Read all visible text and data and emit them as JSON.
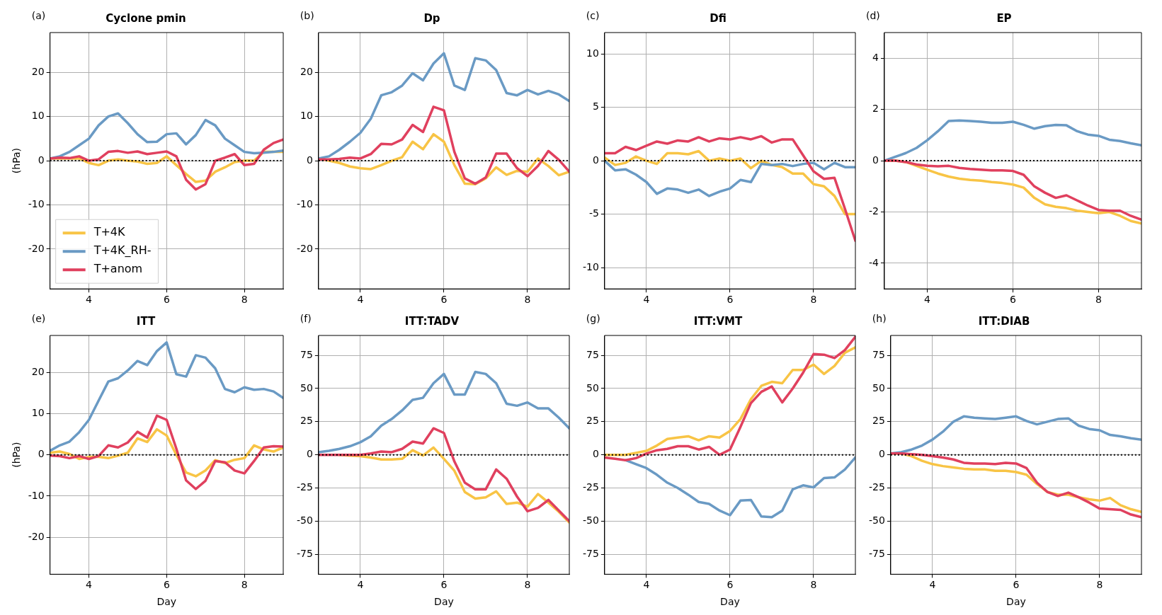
{
  "chart_data": [
    {
      "type": "line",
      "title": "Cyclone pmin",
      "annotations": [
        "(a)"
      ],
      "ylabel": "(hPa)",
      "x": [
        3,
        3.25,
        3.5,
        3.75,
        4,
        4.25,
        4.5,
        4.75,
        5,
        5.25,
        5.5,
        5.75,
        6,
        6.25,
        6.5,
        6.75,
        7,
        7.25,
        7.5,
        7.75,
        8,
        8.25,
        8.5,
        8.75,
        9
      ],
      "xlim": [
        3,
        9
      ],
      "xticks": [
        4,
        6,
        8
      ],
      "ylim": [
        -29,
        29
      ],
      "yticks": [
        -20,
        -10,
        0,
        10,
        20
      ],
      "grid": true,
      "legend": "bottom left",
      "ref_lines": [
        {
          "axis": "y",
          "value": 0,
          "color": "#000000",
          "line_style": "dotted"
        }
      ],
      "series": [
        {
          "name": "T+4K",
          "color": "#f8c445",
          "values": [
            0.5,
            0.5,
            0.5,
            0.5,
            -0.5,
            -1,
            0,
            0.3,
            0,
            -0.2,
            -0.7,
            -0.5,
            1,
            -1,
            -3,
            -4.8,
            -4.5,
            -2.5,
            -1.5,
            -0.3,
            0,
            0,
            2,
            2,
            2
          ]
        },
        {
          "name": "T+4K_RH-",
          "color": "#6a9ac4",
          "values": [
            0.5,
            1,
            2,
            3.5,
            5,
            8,
            10,
            10.7,
            8.5,
            6,
            4.2,
            4.3,
            6,
            6.2,
            3.7,
            5.8,
            9.2,
            8,
            5,
            3.5,
            2,
            1.7,
            1.8,
            2,
            2.3
          ]
        },
        {
          "name": "T+anom",
          "color": "#e0405e",
          "values": [
            0.5,
            0.7,
            0.6,
            1,
            0,
            0.3,
            2,
            2.2,
            1.8,
            2.1,
            1.5,
            1.8,
            2.1,
            1,
            -4.3,
            -6.5,
            -5.3,
            0,
            0.7,
            1.5,
            -1,
            -0.7,
            2.5,
            4,
            4.8
          ]
        }
      ]
    },
    {
      "type": "line",
      "title": "Dp",
      "annotations": [
        "(b)"
      ],
      "x": [
        3,
        3.25,
        3.5,
        3.75,
        4,
        4.25,
        4.5,
        4.75,
        5,
        5.25,
        5.5,
        5.75,
        6,
        6.25,
        6.5,
        6.75,
        7,
        7.25,
        7.5,
        7.75,
        8,
        8.25,
        8.5,
        8.75,
        9
      ],
      "xlim": [
        3,
        9
      ],
      "xticks": [
        4,
        6,
        8
      ],
      "ylim": [
        -29,
        29
      ],
      "yticks": [
        -20,
        -10,
        0,
        10,
        20
      ],
      "grid": true,
      "ref_lines": [
        {
          "axis": "y",
          "value": 0,
          "color": "#000000",
          "line_style": "dotted"
        }
      ],
      "series": [
        {
          "color": "#f8c445",
          "values": [
            0.5,
            0,
            -0.5,
            -1.3,
            -1.7,
            -1.9,
            -1,
            0,
            0.8,
            4.3,
            2.6,
            6,
            4.3,
            -1,
            -5.2,
            -5.3,
            -4,
            -1.5,
            -3.2,
            -2.3,
            -2.5,
            0.5,
            -1.2,
            -3.3,
            -2.5
          ]
        },
        {
          "color": "#6a9ac4",
          "values": [
            0.5,
            1,
            2.5,
            4.3,
            6.3,
            9.5,
            14.8,
            15.5,
            17,
            19.8,
            18.2,
            22,
            24.3,
            17,
            16,
            23.2,
            22.7,
            20.5,
            15.3,
            14.8,
            16,
            15,
            15.8,
            15,
            13.5
          ]
        },
        {
          "color": "#e0405e",
          "values": [
            0.3,
            0.3,
            0.4,
            0.7,
            0.5,
            1.5,
            3.8,
            3.7,
            4.8,
            8.1,
            6.5,
            12.2,
            11.4,
            2,
            -4,
            -5.2,
            -3.8,
            1.6,
            1.6,
            -1.7,
            -3.5,
            -1.2,
            2.2,
            0.2,
            -2.5
          ]
        }
      ]
    },
    {
      "type": "line",
      "title": "Dfi",
      "annotations": [
        "(c)"
      ],
      "x": [
        3,
        3.25,
        3.5,
        3.75,
        4,
        4.25,
        4.5,
        4.75,
        5,
        5.25,
        5.5,
        5.75,
        6,
        6.25,
        6.5,
        6.75,
        7,
        7.25,
        7.5,
        7.75,
        8,
        8.25,
        8.5,
        8.75,
        9
      ],
      "xlim": [
        3,
        9
      ],
      "xticks": [
        4,
        6,
        8
      ],
      "ylim": [
        -12,
        12
      ],
      "yticks": [
        -10,
        -5,
        0,
        5,
        10
      ],
      "grid": true,
      "ref_lines": [
        {
          "axis": "y",
          "value": 0,
          "color": "#000000",
          "line_style": "dotted"
        }
      ],
      "series": [
        {
          "color": "#f8c445",
          "values": [
            0.3,
            -0.4,
            -0.2,
            0.4,
            0,
            -0.3,
            0.7,
            0.7,
            0.6,
            0.9,
            0,
            0.2,
            0,
            0.2,
            -0.7,
            0,
            -0.4,
            -0.6,
            -1.2,
            -1.2,
            -2.2,
            -2.4,
            -3.3,
            -5,
            -5
          ]
        },
        {
          "color": "#6a9ac4",
          "values": [
            0,
            -0.9,
            -0.8,
            -1.3,
            -2,
            -3.1,
            -2.6,
            -2.7,
            -3,
            -2.7,
            -3.3,
            -2.9,
            -2.6,
            -1.8,
            -2,
            -0.3,
            -0.4,
            -0.3,
            -0.5,
            -0.3,
            -0.2,
            -0.8,
            -0.2,
            -0.6,
            -0.6
          ]
        },
        {
          "color": "#e0405e",
          "values": [
            0.7,
            0.7,
            1.3,
            1,
            1.4,
            1.8,
            1.6,
            1.9,
            1.8,
            2.2,
            1.8,
            2.1,
            2,
            2.2,
            2,
            2.3,
            1.7,
            2,
            2,
            0.5,
            -1,
            -1.7,
            -1.6,
            -4.5,
            -7.5
          ]
        }
      ]
    },
    {
      "type": "line",
      "title": "EP",
      "annotations": [
        "(d)"
      ],
      "x": [
        3,
        3.25,
        3.5,
        3.75,
        4,
        4.25,
        4.5,
        4.75,
        5,
        5.25,
        5.5,
        5.75,
        6,
        6.25,
        6.5,
        6.75,
        7,
        7.25,
        7.5,
        7.75,
        8,
        8.25,
        8.5,
        8.75,
        9
      ],
      "xlim": [
        3,
        9
      ],
      "xticks": [
        4,
        6,
        8
      ],
      "ylim": [
        -5,
        5
      ],
      "yticks": [
        -4,
        -2,
        0,
        2,
        4
      ],
      "grid": true,
      "ref_lines": [
        {
          "axis": "y",
          "value": 0,
          "color": "#000000",
          "line_style": "dotted"
        }
      ],
      "series": [
        {
          "color": "#f8c445",
          "values": [
            0,
            0,
            -0.05,
            -0.2,
            -0.35,
            -0.5,
            -0.62,
            -0.7,
            -0.75,
            -0.78,
            -0.83,
            -0.87,
            -0.93,
            -1.05,
            -1.45,
            -1.7,
            -1.8,
            -1.85,
            -1.95,
            -2,
            -2.05,
            -2,
            -2.15,
            -2.35,
            -2.45
          ]
        },
        {
          "color": "#6a9ac4",
          "values": [
            0,
            0.15,
            0.3,
            0.5,
            0.8,
            1.15,
            1.55,
            1.57,
            1.55,
            1.52,
            1.48,
            1.48,
            1.52,
            1.4,
            1.25,
            1.35,
            1.4,
            1.38,
            1.15,
            1.02,
            0.97,
            0.82,
            0.77,
            0.68,
            0.6
          ]
        },
        {
          "color": "#e0405e",
          "values": [
            0,
            0,
            -0.05,
            -0.15,
            -0.2,
            -0.22,
            -0.2,
            -0.28,
            -0.32,
            -0.35,
            -0.38,
            -0.38,
            -0.4,
            -0.55,
            -1,
            -1.25,
            -1.45,
            -1.35,
            -1.55,
            -1.75,
            -1.92,
            -1.95,
            -1.95,
            -2.15,
            -2.3
          ]
        }
      ]
    },
    {
      "type": "line",
      "title": "ITT",
      "annotations": [
        "(e)"
      ],
      "ylabel": "(hPa)",
      "xlabel": "Day",
      "x": [
        3,
        3.25,
        3.5,
        3.75,
        4,
        4.25,
        4.5,
        4.75,
        5,
        5.25,
        5.5,
        5.75,
        6,
        6.25,
        6.5,
        6.75,
        7,
        7.25,
        7.5,
        7.75,
        8,
        8.25,
        8.5,
        8.75,
        9
      ],
      "xlim": [
        3,
        9
      ],
      "xticks": [
        4,
        6,
        8
      ],
      "ylim": [
        -29,
        29
      ],
      "yticks": [
        -20,
        -10,
        0,
        10,
        20
      ],
      "grid": true,
      "ref_lines": [
        {
          "axis": "y",
          "value": 0,
          "color": "#000000",
          "line_style": "dotted"
        }
      ],
      "series": [
        {
          "color": "#f8c445",
          "values": [
            0.5,
            0.8,
            0.2,
            -1,
            -0.5,
            -0.5,
            -0.8,
            -0.2,
            0.5,
            4,
            3.1,
            6.2,
            4.7,
            0,
            -4.3,
            -5.2,
            -3.8,
            -1.3,
            -2,
            -1.2,
            -0.8,
            2.3,
            1.3,
            0.8,
            1.8
          ]
        },
        {
          "color": "#6a9ac4",
          "values": [
            1,
            2.3,
            3.2,
            5.5,
            8.5,
            13.2,
            17.8,
            18.6,
            20.5,
            22.8,
            21.8,
            25.2,
            27.3,
            19.6,
            19,
            24.2,
            23.6,
            21,
            16,
            15.2,
            16.4,
            15.8,
            16,
            15.4,
            13.8
          ]
        },
        {
          "color": "#e0405e",
          "values": [
            -0.2,
            -0.3,
            -0.8,
            -0.3,
            -1,
            -0.3,
            2.3,
            1.8,
            3,
            5.6,
            4.2,
            9.5,
            8.5,
            1.5,
            -6.2,
            -8.3,
            -6.3,
            -1.5,
            -1.8,
            -3.8,
            -4.5,
            -1.5,
            1.8,
            2.1,
            2
          ]
        }
      ]
    },
    {
      "type": "line",
      "title": "ITT:TADV",
      "annotations": [
        "(f)"
      ],
      "xlabel": "Day",
      "x": [
        3,
        3.25,
        3.5,
        3.75,
        4,
        4.25,
        4.5,
        4.75,
        5,
        5.25,
        5.5,
        5.75,
        6,
        6.25,
        6.5,
        6.75,
        7,
        7.25,
        7.5,
        7.75,
        8,
        8.25,
        8.5,
        8.75,
        9
      ],
      "xlim": [
        3,
        9
      ],
      "xticks": [
        4,
        6,
        8
      ],
      "ylim": [
        -90,
        90
      ],
      "yticks": [
        -75,
        -50,
        -25,
        0,
        25,
        50,
        75
      ],
      "grid": true,
      "ref_lines": [
        {
          "axis": "y",
          "value": 0,
          "color": "#000000",
          "line_style": "dotted"
        }
      ],
      "series": [
        {
          "color": "#f8c445",
          "values": [
            null,
            null,
            0,
            -0.5,
            -1,
            -2,
            -3.5,
            -3.5,
            -3,
            3.5,
            -0.5,
            5.5,
            -3,
            -12,
            -28,
            -33,
            -32,
            -27.5,
            -37,
            -36,
            -39,
            -29.5,
            -36,
            -43,
            -51
          ]
        },
        {
          "color": "#6a9ac4",
          "values": [
            2,
            3,
            4.5,
            6.5,
            9.5,
            14,
            22,
            27,
            33.5,
            41.5,
            43,
            54,
            61,
            45.5,
            45.5,
            62.5,
            61,
            54,
            38.5,
            37,
            39.5,
            35,
            35,
            28,
            20
          ]
        },
        {
          "color": "#e0405e",
          "values": [
            0,
            0,
            0,
            0,
            0,
            1,
            2.5,
            2,
            4.5,
            10,
            8.5,
            20,
            16.5,
            -5,
            -21,
            -26,
            -26,
            -11,
            -18,
            -31.5,
            -42.5,
            -40,
            -34,
            -42,
            -50
          ]
        }
      ]
    },
    {
      "type": "line",
      "title": "ITT:VMT",
      "annotations": [
        "(g)"
      ],
      "xlabel": "Day",
      "x": [
        3,
        3.25,
        3.5,
        3.75,
        4,
        4.25,
        4.5,
        4.75,
        5,
        5.25,
        5.5,
        5.75,
        6,
        6.25,
        6.5,
        6.75,
        7,
        7.25,
        7.5,
        7.75,
        8,
        8.25,
        8.5,
        8.75,
        9
      ],
      "xlim": [
        3,
        9
      ],
      "xticks": [
        4,
        6,
        8
      ],
      "ylim": [
        -90,
        90
      ],
      "yticks": [
        -75,
        -50,
        -25,
        0,
        25,
        50,
        75
      ],
      "grid": true,
      "ref_lines": [
        {
          "axis": "y",
          "value": 0,
          "color": "#000000",
          "line_style": "dotted"
        }
      ],
      "series": [
        {
          "color": "#f8c445",
          "values": [
            0,
            0,
            0,
            1.5,
            3,
            7,
            12,
            13,
            14,
            11,
            14,
            13,
            18,
            27,
            42,
            52,
            55,
            54,
            64,
            64,
            68,
            61,
            67,
            77,
            81
          ]
        },
        {
          "color": "#6a9ac4",
          "values": [
            null,
            null,
            -4,
            -7,
            -10,
            -15,
            -21,
            -25,
            -30,
            -35.5,
            -37,
            -42,
            -45.5,
            -34.5,
            -34,
            -46.5,
            -47,
            -42,
            -26,
            -23,
            -24.5,
            -17.5,
            -17,
            -11,
            -2
          ]
        },
        {
          "color": "#e0405e",
          "values": [
            -2,
            -3,
            -4,
            -2.5,
            1,
            3.5,
            4.5,
            6.5,
            6.5,
            4,
            6,
            0,
            4,
            21,
            39,
            47.5,
            51.5,
            39.5,
            50,
            62,
            76,
            75.5,
            73,
            79,
            89
          ]
        }
      ]
    },
    {
      "type": "line",
      "title": "ITT:DIAB",
      "annotations": [
        "(h)"
      ],
      "xlabel": "Day",
      "x": [
        3,
        3.25,
        3.5,
        3.75,
        4,
        4.25,
        4.5,
        4.75,
        5,
        5.25,
        5.5,
        5.75,
        6,
        6.25,
        6.5,
        6.75,
        7,
        7.25,
        7.5,
        7.75,
        8,
        8.25,
        8.5,
        8.75,
        9
      ],
      "xlim": [
        3,
        9
      ],
      "xticks": [
        4,
        6,
        8
      ],
      "ylim": [
        -90,
        90
      ],
      "yticks": [
        -75,
        -50,
        -25,
        0,
        25,
        50,
        75
      ],
      "grid": true,
      "ref_lines": [
        {
          "axis": "y",
          "value": 0,
          "color": "#000000",
          "line_style": "dotted"
        }
      ],
      "series": [
        {
          "color": "#f8c445",
          "values": [
            1,
            1,
            -1,
            -4.5,
            -7,
            -8.5,
            -9.5,
            -10.5,
            -11,
            -11,
            -12,
            -12,
            -13,
            -15,
            -22,
            -28,
            -30,
            -30,
            -32,
            -33.5,
            -34.5,
            -32.5,
            -38,
            -41,
            -43
          ]
        },
        {
          "color": "#6a9ac4",
          "values": [
            1,
            2,
            4,
            7,
            11.5,
            17.5,
            25,
            29,
            28,
            27.5,
            27,
            28,
            29,
            25.5,
            23,
            25,
            27,
            27.5,
            22,
            19.5,
            18.5,
            15,
            14,
            12.5,
            11.5
          ]
        },
        {
          "color": "#e0405e",
          "values": [
            1,
            1,
            0.5,
            0,
            -1,
            -2,
            -3.5,
            -6,
            -6.5,
            -6.5,
            -7,
            -6,
            -6.5,
            -10,
            -21,
            -28,
            -31,
            -28.5,
            -32,
            -36,
            -40.5,
            -41,
            -41.5,
            -45,
            -47
          ]
        }
      ]
    }
  ]
}
